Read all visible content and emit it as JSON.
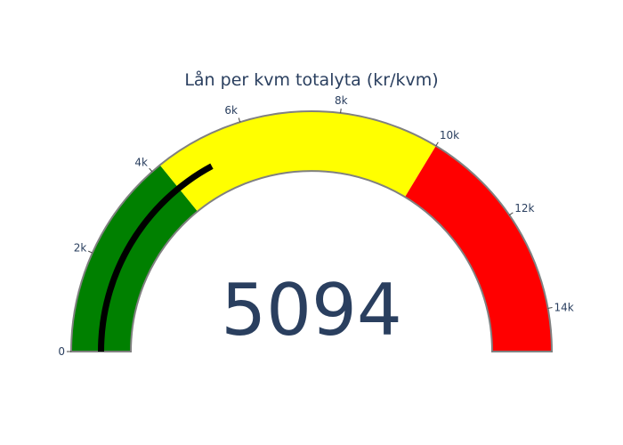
{
  "chart_data": {
    "type": "gauge",
    "title": "Lån per kvm totalyta (kr/kvm)",
    "value": 5094,
    "value_label": "5094",
    "range": [
      0,
      14855
    ],
    "ticks": [
      {
        "value": 0,
        "label": "0"
      },
      {
        "value": 2000,
        "label": "2k"
      },
      {
        "value": 4000,
        "label": "4k"
      },
      {
        "value": 6000,
        "label": "6k"
      },
      {
        "value": 8000,
        "label": "8k"
      },
      {
        "value": 10000,
        "label": "10k"
      },
      {
        "value": 12000,
        "label": "12k"
      },
      {
        "value": 14000,
        "label": "14k"
      }
    ],
    "steps": [
      {
        "range": [
          0,
          4200
        ],
        "color": "#008000"
      },
      {
        "range": [
          4200,
          10000
        ],
        "color": "#ffff00"
      },
      {
        "range": [
          10000,
          14855
        ],
        "color": "#ff0000"
      }
    ],
    "bar_color": "#000000",
    "border_color": "#808080"
  }
}
